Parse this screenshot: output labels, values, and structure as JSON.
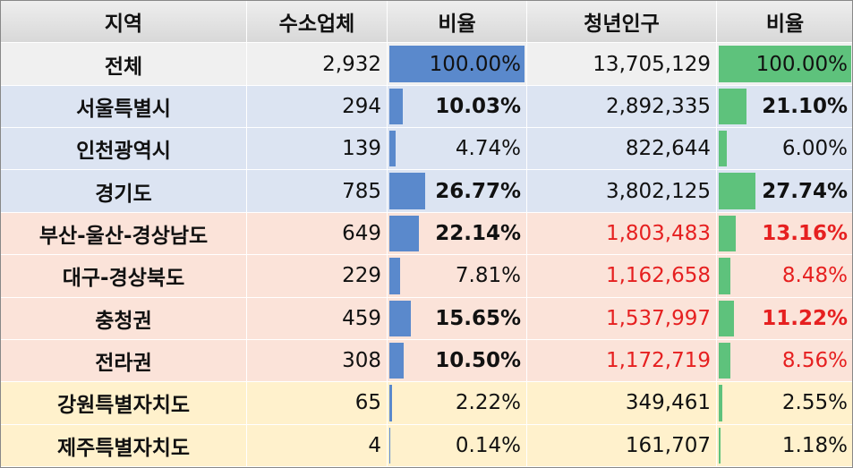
{
  "table": {
    "header": [
      "지역",
      "수소업체",
      "비율",
      "청년인구",
      "비율"
    ],
    "rows": [
      [
        "전체",
        "2,932",
        "100.00%",
        "13,705,129",
        "100.00%"
      ],
      [
        "서울특별시",
        "294",
        "10.03%",
        "2,892,335",
        "21.10%"
      ],
      [
        "인천광역시",
        "139",
        "4.74%",
        "822,644",
        "6.00%"
      ],
      [
        "경기도",
        "785",
        "26.77%",
        "3,802,125",
        "27.74%"
      ],
      [
        "부산-울산-경상남도",
        "649",
        "22.14%",
        "1,803,483",
        "13.16%"
      ],
      [
        "대구-경상북도",
        "229",
        "7.81%",
        "1,162,658",
        "8.48%"
      ],
      [
        "충청권",
        "459",
        "15.65%",
        "1,537,997",
        "11.22%"
      ],
      [
        "전라권",
        "308",
        "10.50%",
        "1,172,719",
        "8.56%"
      ],
      [
        "강원특별자치도",
        "65",
        "2.22%",
        "349,461",
        "2.55%"
      ],
      [
        "제주특별자치도",
        "4",
        "0.14%",
        "161,707",
        "1.18%"
      ]
    ]
  }
}
